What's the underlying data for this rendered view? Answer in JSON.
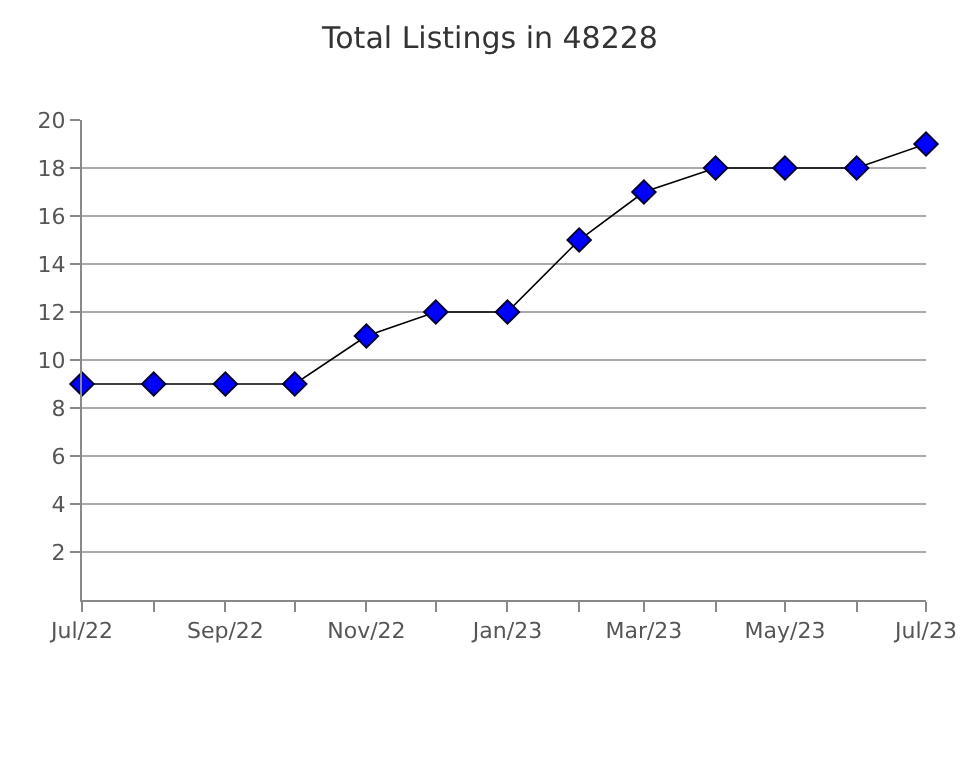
{
  "chart_data": {
    "type": "line",
    "title": "Total Listings in 48228",
    "x": [
      "2022-07",
      "2022-08",
      "2022-09",
      "2022-10",
      "2022-11",
      "2022-12",
      "2023-01",
      "2023-02",
      "2023-03",
      "2023-04",
      "2023-05",
      "2023-06",
      "2023-07"
    ],
    "series": [
      {
        "color": "#0000ff",
        "values": [
          9,
          9,
          9,
          9,
          11,
          12,
          12,
          15,
          17,
          18,
          18,
          18,
          19
        ]
      }
    ],
    "xlim": [
      "2022-07",
      "2023-07"
    ],
    "xticks": [
      {
        "value": "2022-07",
        "label": "Jul/22"
      },
      {
        "value": "2022-08",
        "label": null
      },
      {
        "value": "2022-09",
        "label": "Sep/22"
      },
      {
        "value": "2022-10",
        "label": null
      },
      {
        "value": "2022-11",
        "label": "Nov/22"
      },
      {
        "value": "2022-12",
        "label": null
      },
      {
        "value": "2023-01",
        "label": "Jan/23"
      },
      {
        "value": "2023-02",
        "label": null
      },
      {
        "value": "2023-03",
        "label": "Mar/23"
      },
      {
        "value": "2023-04",
        "label": null
      },
      {
        "value": "2023-05",
        "label": "May/23"
      },
      {
        "value": "2023-06",
        "label": null
      },
      {
        "value": "2023-07",
        "label": "Jul/23"
      }
    ],
    "ylim": [
      0,
      20
    ],
    "yticks": [
      2,
      4,
      6,
      8,
      10,
      12,
      14,
      16,
      18,
      20
    ],
    "grid": "y",
    "marker": "diamond",
    "line_style": "solid"
  }
}
